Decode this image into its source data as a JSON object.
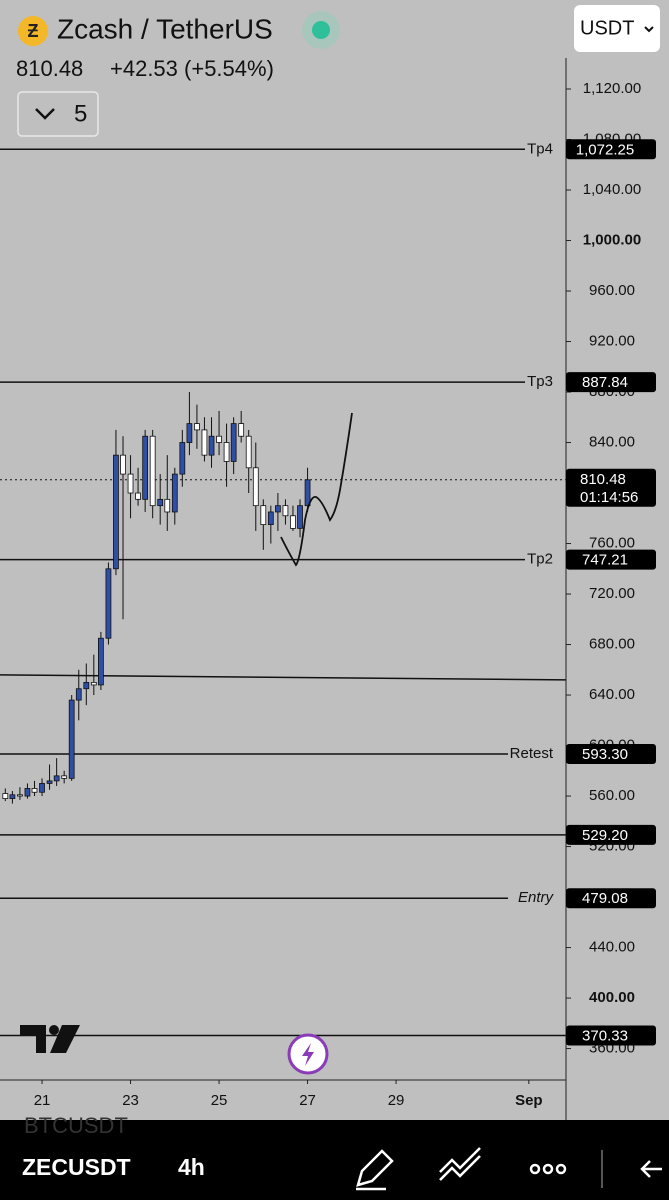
{
  "header": {
    "symbol_name": "Zcash / TetherUS",
    "price": "810.48",
    "change": "+42.53 (+5.54%)",
    "interval_count": "5",
    "currency": "USDT"
  },
  "chart_data": {
    "type": "candlestick",
    "x": [
      20.17,
      20.33,
      20.5,
      20.67,
      20.83,
      21.0,
      21.17,
      21.33,
      21.5,
      21.67,
      21.83,
      22.0,
      22.17,
      22.33,
      22.5,
      22.67,
      22.83,
      23.0,
      23.17,
      23.33,
      23.5,
      23.67,
      23.83,
      24.0,
      24.17,
      24.33,
      24.5,
      24.67,
      24.83,
      25.0,
      25.17,
      25.33,
      25.5,
      25.67,
      25.83,
      26.0,
      26.17,
      26.33,
      26.5,
      26.67,
      26.83,
      27.0
    ],
    "open": [
      562,
      558,
      561,
      560,
      566,
      563,
      570,
      572,
      576,
      574,
      636,
      645,
      650,
      648,
      685,
      740,
      830,
      815,
      800,
      795,
      845,
      790,
      795,
      785,
      815,
      840,
      855,
      850,
      830,
      845,
      840,
      825,
      855,
      845,
      820,
      790,
      775,
      785,
      790,
      782,
      772,
      790
    ],
    "high": [
      566,
      564,
      567,
      570,
      572,
      574,
      585,
      590,
      580,
      640,
      660,
      665,
      672,
      690,
      745,
      850,
      845,
      830,
      820,
      850,
      850,
      815,
      830,
      820,
      850,
      880,
      870,
      860,
      860,
      865,
      855,
      860,
      865,
      850,
      840,
      795,
      790,
      800,
      795,
      790,
      795,
      820
    ],
    "low": [
      556,
      554,
      557,
      558,
      560,
      560,
      565,
      568,
      570,
      572,
      620,
      632,
      640,
      644,
      680,
      735,
      700,
      780,
      790,
      785,
      780,
      775,
      770,
      775,
      805,
      830,
      835,
      825,
      820,
      830,
      805,
      815,
      840,
      800,
      770,
      755,
      760,
      770,
      775,
      770,
      765,
      785
    ],
    "close": [
      558,
      561,
      560,
      566,
      563,
      570,
      572,
      576,
      574,
      636,
      645,
      650,
      648,
      685,
      740,
      830,
      815,
      800,
      795,
      845,
      790,
      795,
      785,
      815,
      840,
      855,
      850,
      830,
      845,
      840,
      825,
      855,
      845,
      820,
      790,
      775,
      785,
      790,
      782,
      772,
      790,
      810.48
    ],
    "up_color": "#2f4fa6",
    "down_color": "#ffffff",
    "xlim": [
      20.05,
      32.84
    ],
    "xticks": [
      21,
      23,
      25,
      27,
      29,
      {
        "value": 32,
        "label": "Sep"
      }
    ],
    "ylim": [
      335.1,
      1190.5
    ],
    "yticks": [
      {
        "value": 1120,
        "label": "1,120.00"
      },
      {
        "value": 1080,
        "label": "1,080.00"
      },
      {
        "value": 1040,
        "label": "1,040.00"
      },
      {
        "value": 1000,
        "label": "1,000.00",
        "bold": true
      },
      {
        "value": 960,
        "label": "960.00"
      },
      {
        "value": 920,
        "label": "920.00"
      },
      {
        "value": 880,
        "label": "880.00"
      },
      {
        "value": 840,
        "label": "840.00"
      },
      {
        "value": 760,
        "label": "760.00"
      },
      {
        "value": 720,
        "label": "720.00"
      },
      {
        "value": 680,
        "label": "680.00"
      },
      {
        "value": 640,
        "label": "640.00"
      },
      {
        "value": 600,
        "label": "600.00"
      },
      {
        "value": 560,
        "label": "560.00"
      },
      {
        "value": 520,
        "label": "520.00"
      },
      {
        "value": 440,
        "label": "440.00"
      },
      {
        "value": 400,
        "label": "400.00",
        "bold": true
      },
      {
        "value": 360,
        "label": "360.00"
      }
    ],
    "levels": [
      {
        "label": "Tp4",
        "value": 1072.25,
        "value_label": "1,072.25"
      },
      {
        "label": "Tp3",
        "value": 887.84
      },
      {
        "label": "Tp2",
        "value": 747.21
      },
      {
        "label": "Retest",
        "value": 593.3,
        "value_label": "593.30"
      },
      {
        "value": 529.2,
        "value_label": "529.20"
      },
      {
        "label": "Entry",
        "value": 479.08,
        "value_label": "479.08",
        "italic": true
      },
      {
        "value": 370.33
      }
    ],
    "trend_line": [
      656,
      652
    ],
    "last_price": 810.48,
    "countdown": "01:14:56"
  },
  "footer": {
    "ghost_symbol": "BTCUSDT",
    "symbol": "ZECUSDT",
    "interval": "4h"
  }
}
